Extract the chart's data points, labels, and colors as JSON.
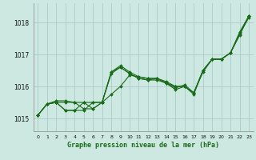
{
  "xlabel": "Graphe pression niveau de la mer (hPa)",
  "xlim": [
    -0.5,
    23.5
  ],
  "ylim": [
    1014.6,
    1018.6
  ],
  "yticks": [
    1015,
    1016,
    1017,
    1018
  ],
  "xticks": [
    0,
    1,
    2,
    3,
    4,
    5,
    6,
    7,
    8,
    9,
    10,
    11,
    12,
    13,
    14,
    15,
    16,
    17,
    18,
    19,
    20,
    21,
    22,
    23
  ],
  "bg_color": "#cce8e0",
  "grid_color": "#aacccc",
  "line_color": "#1a6b1a",
  "markersize": 2.0,
  "linewidth": 0.8,
  "series": [
    [
      1015.1,
      1015.45,
      1015.55,
      1015.55,
      1015.5,
      1015.5,
      1015.5,
      1015.5,
      1015.75,
      1016.0,
      1016.35,
      1016.3,
      1016.25,
      1016.25,
      1016.1,
      1015.9,
      1016.0,
      1015.75,
      1016.5,
      1016.85,
      1016.85,
      1017.05,
      1017.6,
      1018.2
    ],
    [
      1015.1,
      1015.45,
      1015.5,
      1015.25,
      1015.25,
      1015.5,
      1015.3,
      1015.5,
      1016.4,
      1016.6,
      1016.4,
      1016.25,
      1016.2,
      1016.2,
      1016.1,
      1016.0,
      1016.0,
      1015.8,
      1016.5,
      1016.85,
      1016.85,
      1017.05,
      1017.65,
      1018.2
    ],
    [
      1015.1,
      1015.45,
      1015.5,
      1015.25,
      1015.25,
      1015.25,
      1015.5,
      1015.5,
      1016.45,
      1016.6,
      1016.4,
      1016.25,
      1016.2,
      1016.25,
      1016.15,
      1016.0,
      1016.0,
      1015.8,
      1016.45,
      1016.85,
      1016.85,
      1017.05,
      1017.65,
      1018.15
    ],
    [
      1015.1,
      1015.45,
      1015.5,
      1015.5,
      1015.5,
      1015.3,
      1015.3,
      1015.5,
      1016.45,
      1016.65,
      1016.45,
      1016.3,
      1016.25,
      1016.25,
      1016.1,
      1015.95,
      1016.05,
      1015.8,
      1016.5,
      1016.85,
      1016.85,
      1017.05,
      1017.7,
      1018.2
    ]
  ]
}
